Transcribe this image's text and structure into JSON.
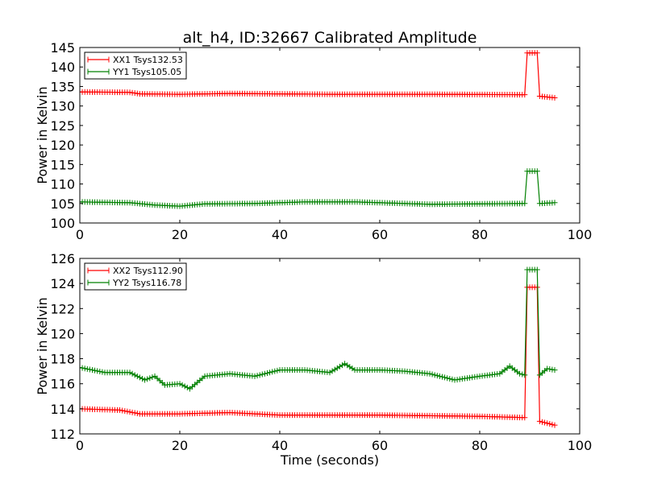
{
  "figure_title": "alt_h4, ID:32667 Calibrated Amplitude",
  "chart_data": [
    {
      "type": "line",
      "title": "alt_h4, ID:32667 Calibrated Amplitude",
      "xlabel": "",
      "ylabel": "Power in Kelvin",
      "xlim": [
        0,
        100
      ],
      "ylim": [
        100,
        145
      ],
      "xticks": [
        0,
        20,
        40,
        60,
        80,
        100
      ],
      "yticks": [
        100,
        105,
        110,
        115,
        120,
        125,
        130,
        135,
        140,
        145
      ],
      "legend_location": "top-left",
      "grid": false,
      "series": [
        {
          "name": "XX1 Tsys132.53",
          "color": "#ff0000",
          "marker": "plus",
          "x_range": [
            0,
            95
          ],
          "x_step": 0.5,
          "baseline_points": [
            [
              0,
              133.6
            ],
            [
              10,
              133.5
            ],
            [
              12,
              133.1
            ],
            [
              20,
              133.0
            ],
            [
              30,
              133.2
            ],
            [
              50,
              133.0
            ],
            [
              70,
              133.0
            ],
            [
              89,
              132.9
            ]
          ],
          "spike": {
            "rise_start": 89.0,
            "plateau_start": 89.5,
            "plateau_end": 91.5,
            "fall_end": 92.0,
            "plateau_level": 143.6
          },
          "after_spike_points": [
            [
              92.0,
              132.5
            ],
            [
              95,
              132.1
            ]
          ]
        },
        {
          "name": "YY1 Tsys105.05",
          "color": "#008000",
          "marker": "plus",
          "x_range": [
            0,
            95
          ],
          "x_step": 0.5,
          "baseline_points": [
            [
              0,
              105.4
            ],
            [
              10,
              105.2
            ],
            [
              15,
              104.6
            ],
            [
              20,
              104.3
            ],
            [
              25,
              104.9
            ],
            [
              35,
              105.0
            ],
            [
              45,
              105.4
            ],
            [
              55,
              105.4
            ],
            [
              70,
              104.8
            ],
            [
              89,
              105.0
            ]
          ],
          "spike": {
            "rise_start": 89.0,
            "plateau_start": 89.5,
            "plateau_end": 91.5,
            "fall_end": 92.0,
            "plateau_level": 113.3
          },
          "after_spike_points": [
            [
              92.0,
              105.0
            ],
            [
              95,
              105.2
            ]
          ]
        }
      ]
    },
    {
      "type": "line",
      "title": "",
      "xlabel": "Time (seconds)",
      "ylabel": "Power in Kelvin",
      "xlim": [
        0,
        100
      ],
      "ylim": [
        112,
        126
      ],
      "xticks": [
        0,
        20,
        40,
        60,
        80,
        100
      ],
      "yticks": [
        112,
        114,
        116,
        118,
        120,
        122,
        124,
        126
      ],
      "legend_location": "top-left",
      "grid": false,
      "series": [
        {
          "name": "XX2 Tsys112.90",
          "color": "#ff0000",
          "marker": "plus",
          "x_range": [
            0,
            95
          ],
          "x_step": 0.5,
          "baseline_points": [
            [
              0,
              114.0
            ],
            [
              8,
              113.9
            ],
            [
              12,
              113.6
            ],
            [
              20,
              113.6
            ],
            [
              30,
              113.7
            ],
            [
              40,
              113.5
            ],
            [
              60,
              113.5
            ],
            [
              80,
              113.4
            ],
            [
              89,
              113.3
            ]
          ],
          "spike": {
            "rise_start": 89.0,
            "plateau_start": 89.5,
            "plateau_end": 91.5,
            "fall_end": 92.0,
            "plateau_level": 123.7
          },
          "after_spike_points": [
            [
              92.0,
              113.0
            ],
            [
              95,
              112.7
            ]
          ]
        },
        {
          "name": "YY2 Tsys116.78",
          "color": "#008000",
          "marker": "plus",
          "x_range": [
            0,
            95
          ],
          "x_step": 0.5,
          "baseline_points": [
            [
              0,
              117.3
            ],
            [
              5,
              116.9
            ],
            [
              10,
              116.9
            ],
            [
              13,
              116.3
            ],
            [
              15,
              116.6
            ],
            [
              17,
              115.9
            ],
            [
              20,
              116.0
            ],
            [
              22,
              115.6
            ],
            [
              25,
              116.6
            ],
            [
              30,
              116.8
            ],
            [
              35,
              116.6
            ],
            [
              40,
              117.1
            ],
            [
              45,
              117.1
            ],
            [
              50,
              116.9
            ],
            [
              53,
              117.6
            ],
            [
              55,
              117.1
            ],
            [
              60,
              117.1
            ],
            [
              65,
              117.0
            ],
            [
              70,
              116.8
            ],
            [
              75,
              116.3
            ],
            [
              80,
              116.6
            ],
            [
              84,
              116.8
            ],
            [
              86,
              117.4
            ],
            [
              88,
              116.8
            ],
            [
              89,
              116.7
            ]
          ],
          "spike": {
            "rise_start": 89.0,
            "plateau_start": 89.5,
            "plateau_end": 91.5,
            "fall_end": 92.0,
            "plateau_level": 125.1
          },
          "after_spike_points": [
            [
              92.0,
              116.7
            ],
            [
              93.5,
              117.2
            ],
            [
              95,
              117.1
            ]
          ]
        }
      ]
    }
  ]
}
